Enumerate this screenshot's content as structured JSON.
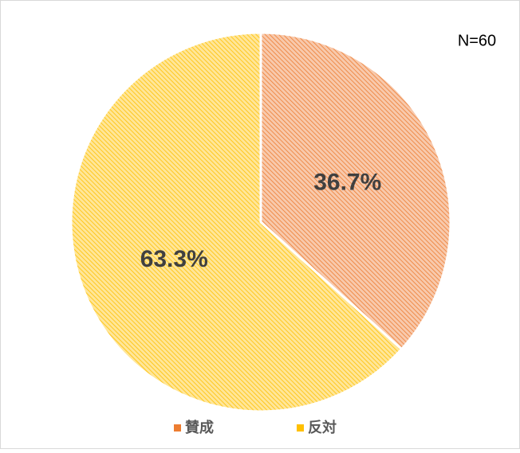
{
  "chart_data": {
    "type": "pie",
    "annotation": "N=60",
    "categories": [
      "賛成",
      "反対"
    ],
    "values": [
      36.7,
      63.3
    ],
    "value_labels": [
      "36.7%",
      "63.3%"
    ],
    "colors": [
      "#ED7D31",
      "#FFC000"
    ],
    "legend": "bottom"
  }
}
